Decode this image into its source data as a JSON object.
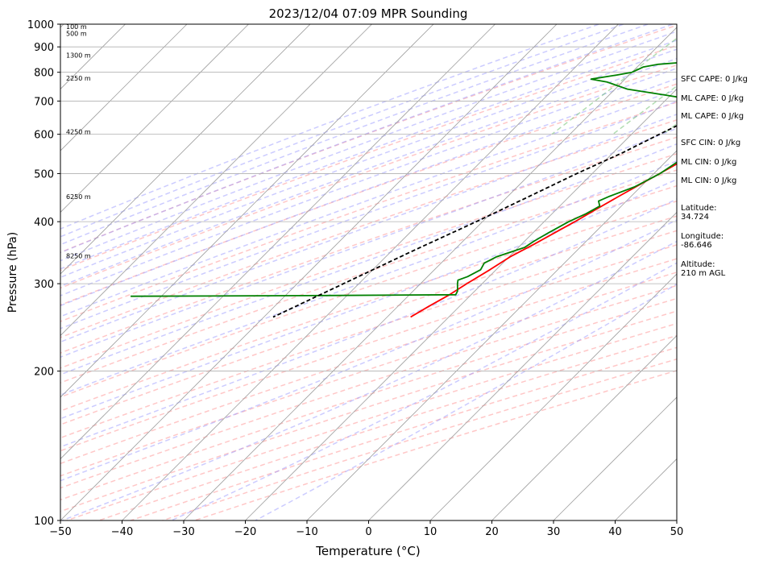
{
  "chart_data": {
    "type": "line",
    "title": "2023/12/04 07:09 MPR Sounding",
    "xlabel": "Temperature (°C)",
    "ylabel": "Pressure (hPa)",
    "xlim": [
      -50,
      50
    ],
    "ylim": [
      1000,
      100
    ],
    "y_scale": "log",
    "skew": "skew-T (45°)",
    "grid": true,
    "x_ticks": [
      -50,
      -40,
      -30,
      -20,
      -10,
      0,
      10,
      20,
      30,
      40,
      50
    ],
    "y_ticks": [
      1000,
      900,
      800,
      700,
      600,
      500,
      400,
      300,
      200,
      100
    ],
    "height_labels": [
      {
        "p": 985,
        "text": "100 m"
      },
      {
        "p": 955,
        "text": "500 m"
      },
      {
        "p": 862,
        "text": "1300 m"
      },
      {
        "p": 775,
        "text": "2250 m"
      },
      {
        "p": 605,
        "text": "4250 m"
      },
      {
        "p": 448,
        "text": "6250 m"
      },
      {
        "p": 340,
        "text": "8250 m"
      }
    ],
    "series": [
      {
        "color": "#ff0000",
        "points": [
          [
            986,
            7.6
          ],
          [
            982,
            11.5
          ],
          [
            975,
            12.5
          ],
          [
            950,
            12.8
          ],
          [
            925,
            12.6
          ],
          [
            900,
            11.5
          ],
          [
            870,
            10.0
          ],
          [
            840,
            7.5
          ],
          [
            810,
            6.0
          ],
          [
            780,
            5.0
          ],
          [
            750,
            4.5
          ],
          [
            720,
            3.0
          ],
          [
            690,
            0.8
          ],
          [
            660,
            -1.0
          ],
          [
            630,
            -2.8
          ],
          [
            600,
            -4.5
          ],
          [
            570,
            -5.8
          ],
          [
            540,
            -7.0
          ],
          [
            510,
            -8.5
          ],
          [
            480,
            -10.2
          ],
          [
            450,
            -12.0
          ],
          [
            420,
            -13.8
          ],
          [
            400,
            -15.0
          ],
          [
            380,
            -16.5
          ],
          [
            360,
            -18.0
          ],
          [
            340,
            -19.8
          ],
          [
            320,
            -21.0
          ],
          [
            300,
            -22.5
          ],
          [
            285,
            -23.5
          ],
          [
            270,
            -25.0
          ],
          [
            257,
            -26.2
          ]
        ]
      },
      {
        "color": "#008000",
        "points": [
          [
            985,
            5.5
          ],
          [
            970,
            6.0
          ],
          [
            960,
            3.0
          ],
          [
            940,
            1.0
          ],
          [
            925,
            -1.0
          ],
          [
            910,
            -3.5
          ],
          [
            900,
            -5.0
          ],
          [
            890,
            -8.0
          ],
          [
            880,
            -11.0
          ],
          [
            870,
            -13.0
          ],
          [
            860,
            -15.0
          ],
          [
            850,
            -18.5
          ],
          [
            840,
            -22.0
          ],
          [
            830,
            -27.0
          ],
          [
            820,
            -29.0
          ],
          [
            810,
            -29.5
          ],
          [
            800,
            -30.0
          ],
          [
            790,
            -32.0
          ],
          [
            775,
            -35.5
          ],
          [
            765,
            -32.5
          ],
          [
            740,
            -28.0
          ],
          [
            720,
            -21.0
          ],
          [
            700,
            -14.0
          ],
          [
            680,
            -8.0
          ],
          [
            662,
            -3.5
          ],
          [
            645,
            -3.3
          ],
          [
            630,
            -5.5
          ],
          [
            600,
            -7.0
          ],
          [
            570,
            -8.5
          ],
          [
            550,
            -9.0
          ],
          [
            530,
            -8.0
          ],
          [
            500,
            -9.0
          ],
          [
            470,
            -11.0
          ],
          [
            450,
            -13.5
          ],
          [
            440,
            -14.5
          ],
          [
            430,
            -13.5
          ],
          [
            415,
            -14.5
          ],
          [
            400,
            -16.0
          ],
          [
            380,
            -17.5
          ],
          [
            365,
            -18.5
          ],
          [
            355,
            -19.0
          ],
          [
            340,
            -22.0
          ],
          [
            330,
            -23.0
          ],
          [
            320,
            -22.5
          ],
          [
            310,
            -23.5
          ],
          [
            305,
            -24.5
          ],
          [
            300,
            -24.0
          ],
          [
            290,
            -22.8
          ],
          [
            285,
            -22.5
          ],
          [
            284,
            -44.0
          ],
          [
            283,
            -75.0
          ]
        ]
      },
      {
        "color": "#000000",
        "dash": true,
        "points": [
          [
            985,
            7.6
          ],
          [
            950,
            5.5
          ],
          [
            900,
            2.5
          ],
          [
            850,
            -0.5
          ],
          [
            800,
            -3.5
          ],
          [
            750,
            -6.5
          ],
          [
            700,
            -9.5
          ],
          [
            650,
            -12.5
          ],
          [
            600,
            -15.5
          ],
          [
            550,
            -18.5
          ],
          [
            500,
            -22.5
          ],
          [
            450,
            -26.5
          ],
          [
            400,
            -31.0
          ],
          [
            350,
            -36.5
          ],
          [
            300,
            -42.5
          ],
          [
            257,
            -48.5
          ]
        ]
      }
    ],
    "stats": [
      "SFC CAPE: 0 J/kg",
      "ML CAPE: 0 J/kg",
      "ML CAPE: 0 J/kg",
      "SFC CIN: 0 J/kg",
      "ML CIN: 0 J/kg",
      "ML CIN: 0 J/kg",
      "Latitude:\n34.724",
      "Longitude:\n-86.646",
      "Altitude:\n210 m AGL"
    ],
    "colors": {
      "temperature": "#ff0000",
      "dewpoint": "#008000",
      "parcel": "#000000",
      "dry_adiabats": "#ff9999",
      "moist_adiabats": "#9999ff",
      "mixing_ratio": "#66bb66",
      "isotherms": "#a0a0a0"
    }
  }
}
